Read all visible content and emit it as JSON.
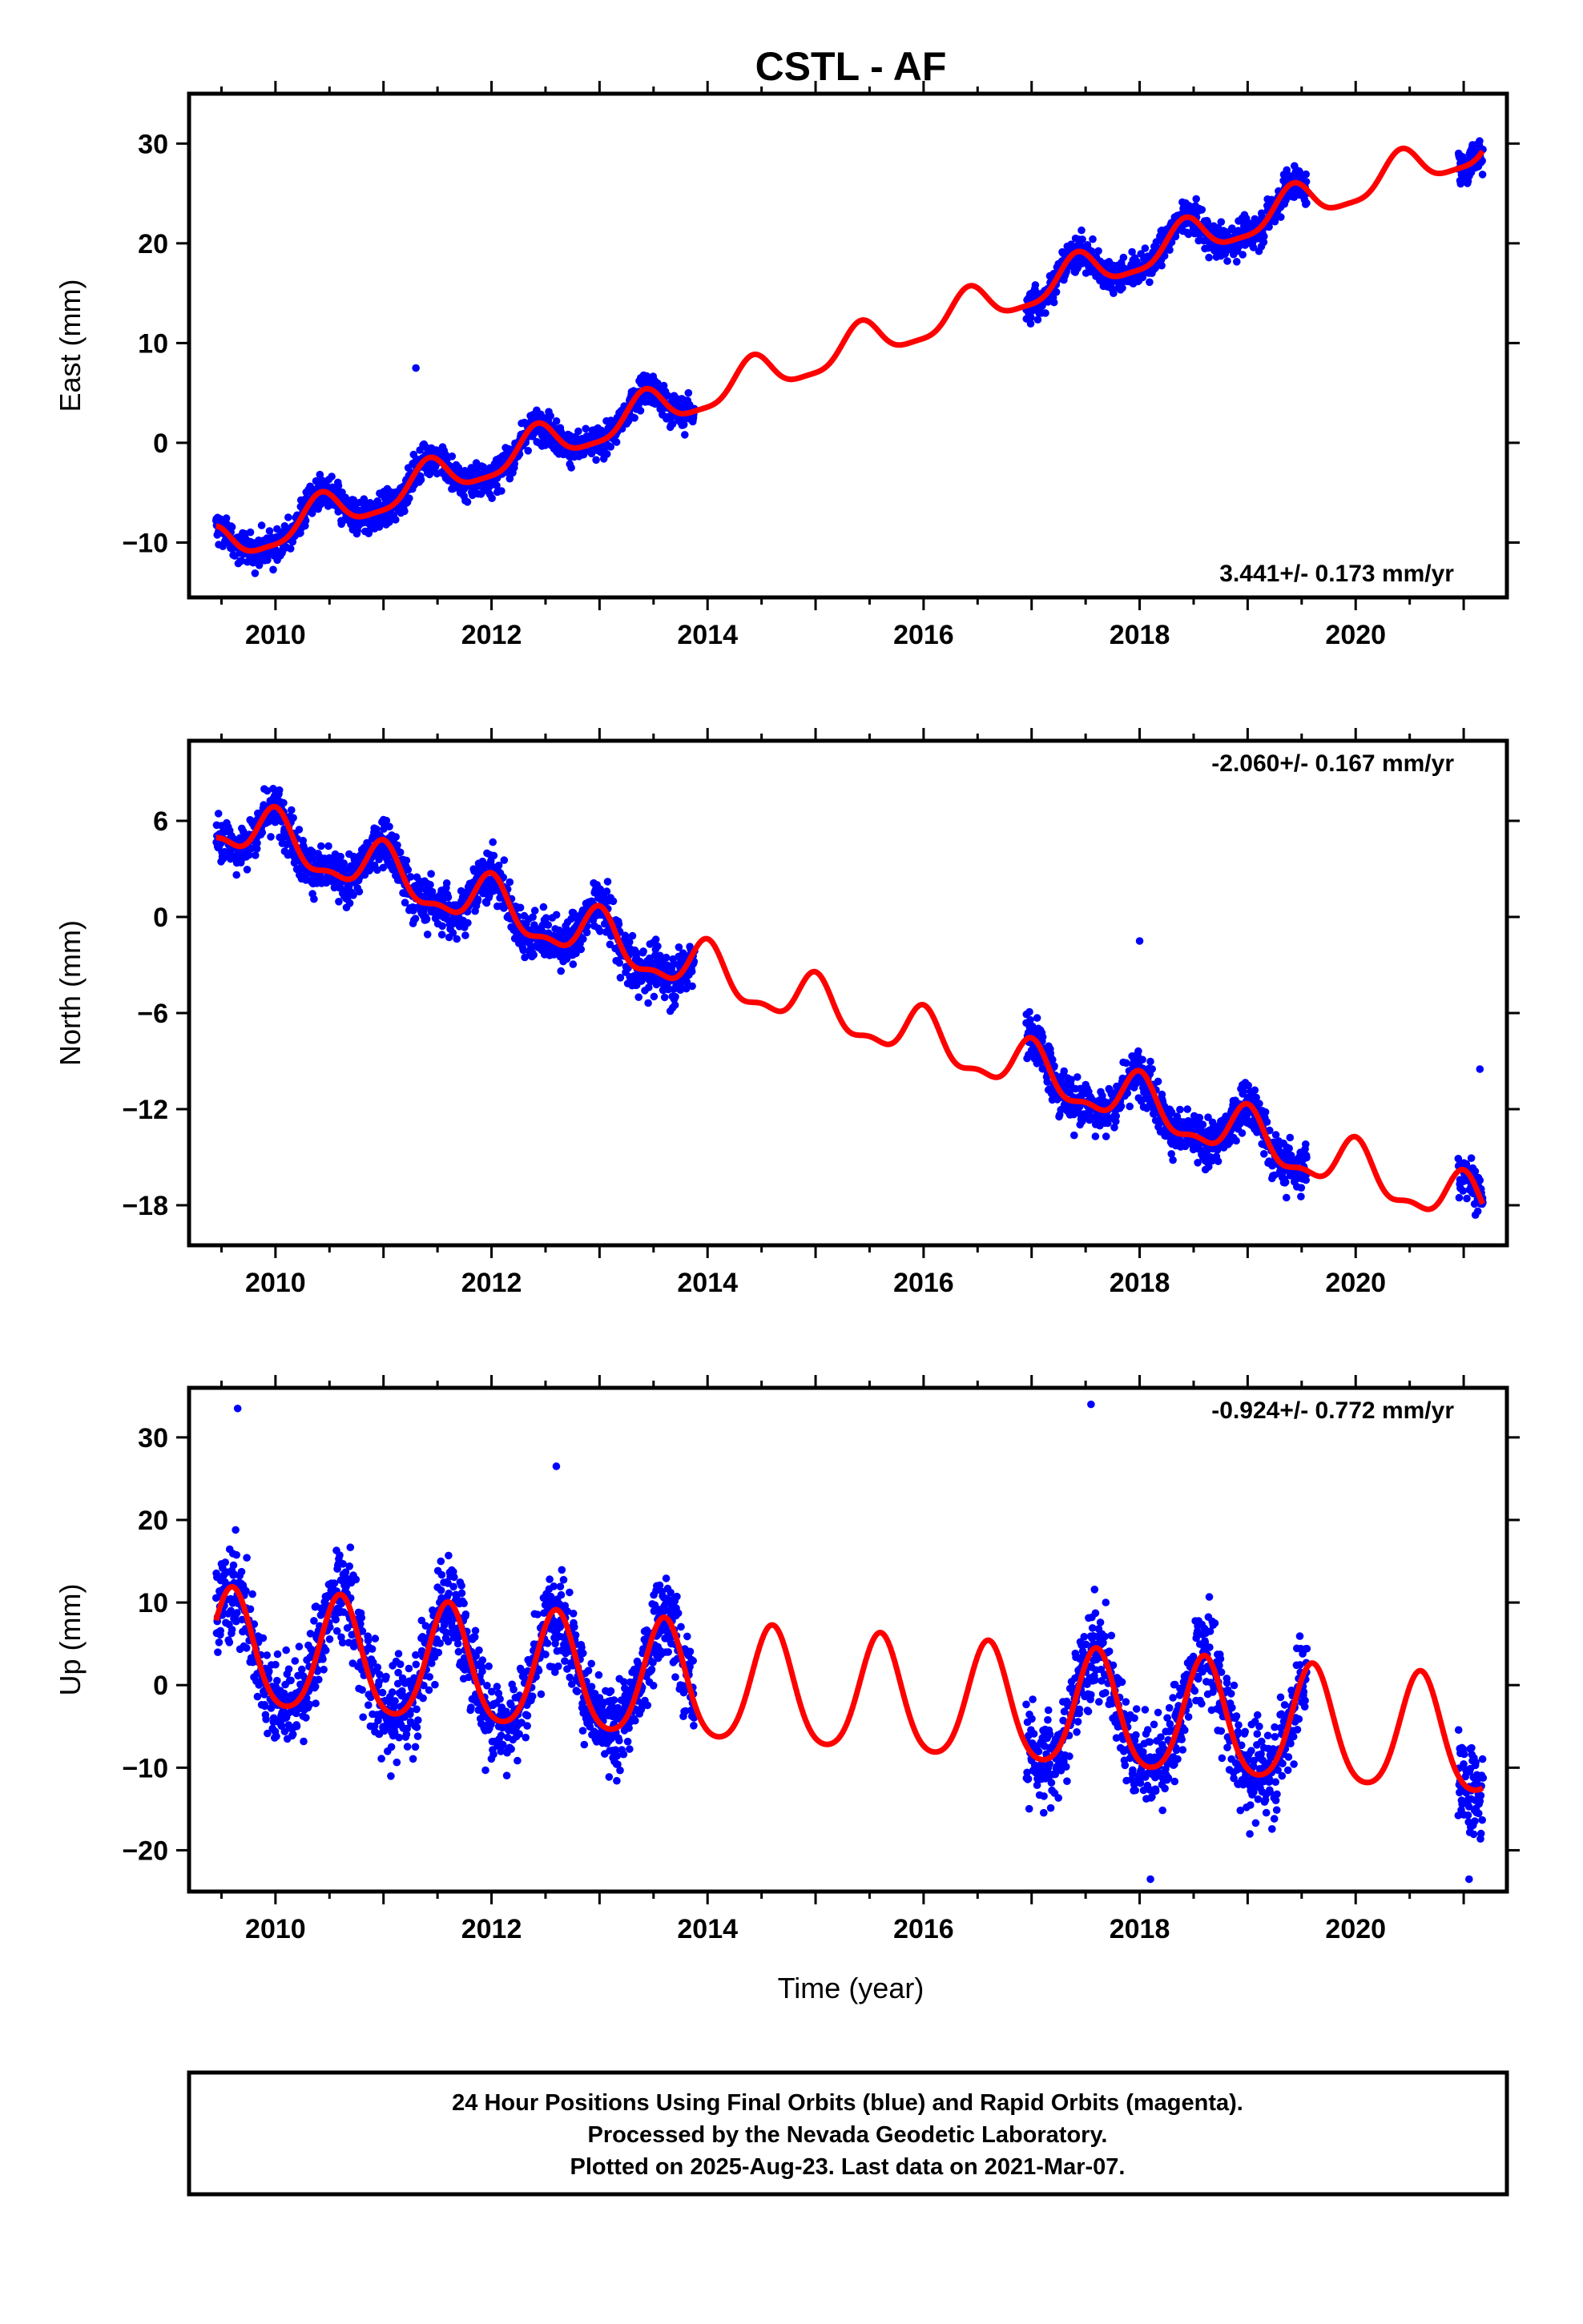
{
  "title": "CSTL - AF",
  "xlabel": "Time (year)",
  "footer": {
    "line1": "24 Hour Positions Using Final Orbits (blue) and Rapid Orbits (magenta).",
    "line2": "Processed by the Nevada Geodetic Laboratory.",
    "line3": "Plotted on 2025-Aug-23. Last data on 2021-Mar-07."
  },
  "colors": {
    "data": "#0000ff",
    "model": "#ff0000",
    "axis": "#000000"
  },
  "chart_data": [
    {
      "type": "scatter",
      "ylabel": "East (mm)",
      "rate_label": "3.441+/- 0.173 mm/yr",
      "rate_position": "bottom-right",
      "xlim": [
        2009.2,
        2021.4
      ],
      "ylim": [
        -15.5,
        35
      ],
      "xticks": [
        2010,
        2012,
        2014,
        2016,
        2018,
        2020
      ],
      "yticks": [
        -10,
        0,
        10,
        20,
        30
      ],
      "data_segments": [
        [
          2009.45,
          2013.88
        ],
        [
          2016.95,
          2019.55
        ],
        [
          2020.95,
          2021.18
        ]
      ],
      "model": {
        "rate": 3.441,
        "intercept_year": 2009.5,
        "intercept": -10.5,
        "annual_amp": 1.9,
        "annual_phase_year": 2009.42,
        "semiannual_amp": 0.5
      },
      "scatter_sd": 1.2,
      "outliers": [
        [
          2011.3,
          7.5
        ]
      ],
      "series": [
        {
          "name": "Final Orbits (blue)",
          "color": "#0000ff"
        },
        {
          "name": "model",
          "color": "#ff0000"
        }
      ]
    },
    {
      "type": "scatter",
      "ylabel": "North (mm)",
      "rate_label": "-2.060+/- 0.167 mm/yr",
      "rate_position": "top-right",
      "xlim": [
        2009.2,
        2021.4
      ],
      "ylim": [
        -20.5,
        11
      ],
      "xticks": [
        2010,
        2012,
        2014,
        2016,
        2018,
        2020
      ],
      "yticks": [
        -18,
        -12,
        -6,
        0,
        6
      ],
      "data_segments": [
        [
          2009.45,
          2013.88
        ],
        [
          2016.95,
          2019.55
        ],
        [
          2020.95,
          2021.18
        ]
      ],
      "model": {
        "rate": -2.06,
        "intercept_year": 2009.5,
        "intercept": 5.8,
        "annual_amp": 1.5,
        "annual_phase_year": 2009.0,
        "semiannual_amp": 0.6
      },
      "scatter_sd": 1.1,
      "outliers": [
        [
          2018.0,
          -1.5
        ],
        [
          2021.15,
          -9.5
        ]
      ],
      "series": [
        {
          "name": "Final Orbits (blue)",
          "color": "#0000ff"
        },
        {
          "name": "model",
          "color": "#ff0000"
        }
      ]
    },
    {
      "type": "scatter",
      "ylabel": "Up (mm)",
      "rate_label": "-0.924+/- 0.772 mm/yr",
      "rate_position": "top-right",
      "xlim": [
        2009.2,
        2021.4
      ],
      "ylim": [
        -25,
        36
      ],
      "xticks": [
        2010,
        2012,
        2014,
        2016,
        2018,
        2020
      ],
      "yticks": [
        -20,
        -10,
        0,
        10,
        20,
        30
      ],
      "data_segments": [
        [
          2009.45,
          2013.88
        ],
        [
          2016.95,
          2019.55
        ],
        [
          2020.95,
          2021.18
        ]
      ],
      "model": {
        "rate": -0.924,
        "intercept_year": 2009.5,
        "intercept": 4.0,
        "annual_amp": 7.0,
        "annual_phase_year": 2009.6,
        "semiannual_amp": 1.0
      },
      "scatter_sd": 4.0,
      "outliers": [
        [
          2009.65,
          33.5
        ],
        [
          2012.6,
          26.5
        ],
        [
          2017.55,
          34
        ],
        [
          2018.1,
          -23.5
        ],
        [
          2021.05,
          -23.5
        ]
      ],
      "series": [
        {
          "name": "Final Orbits (blue)",
          "color": "#0000ff"
        },
        {
          "name": "model",
          "color": "#ff0000"
        }
      ]
    }
  ]
}
